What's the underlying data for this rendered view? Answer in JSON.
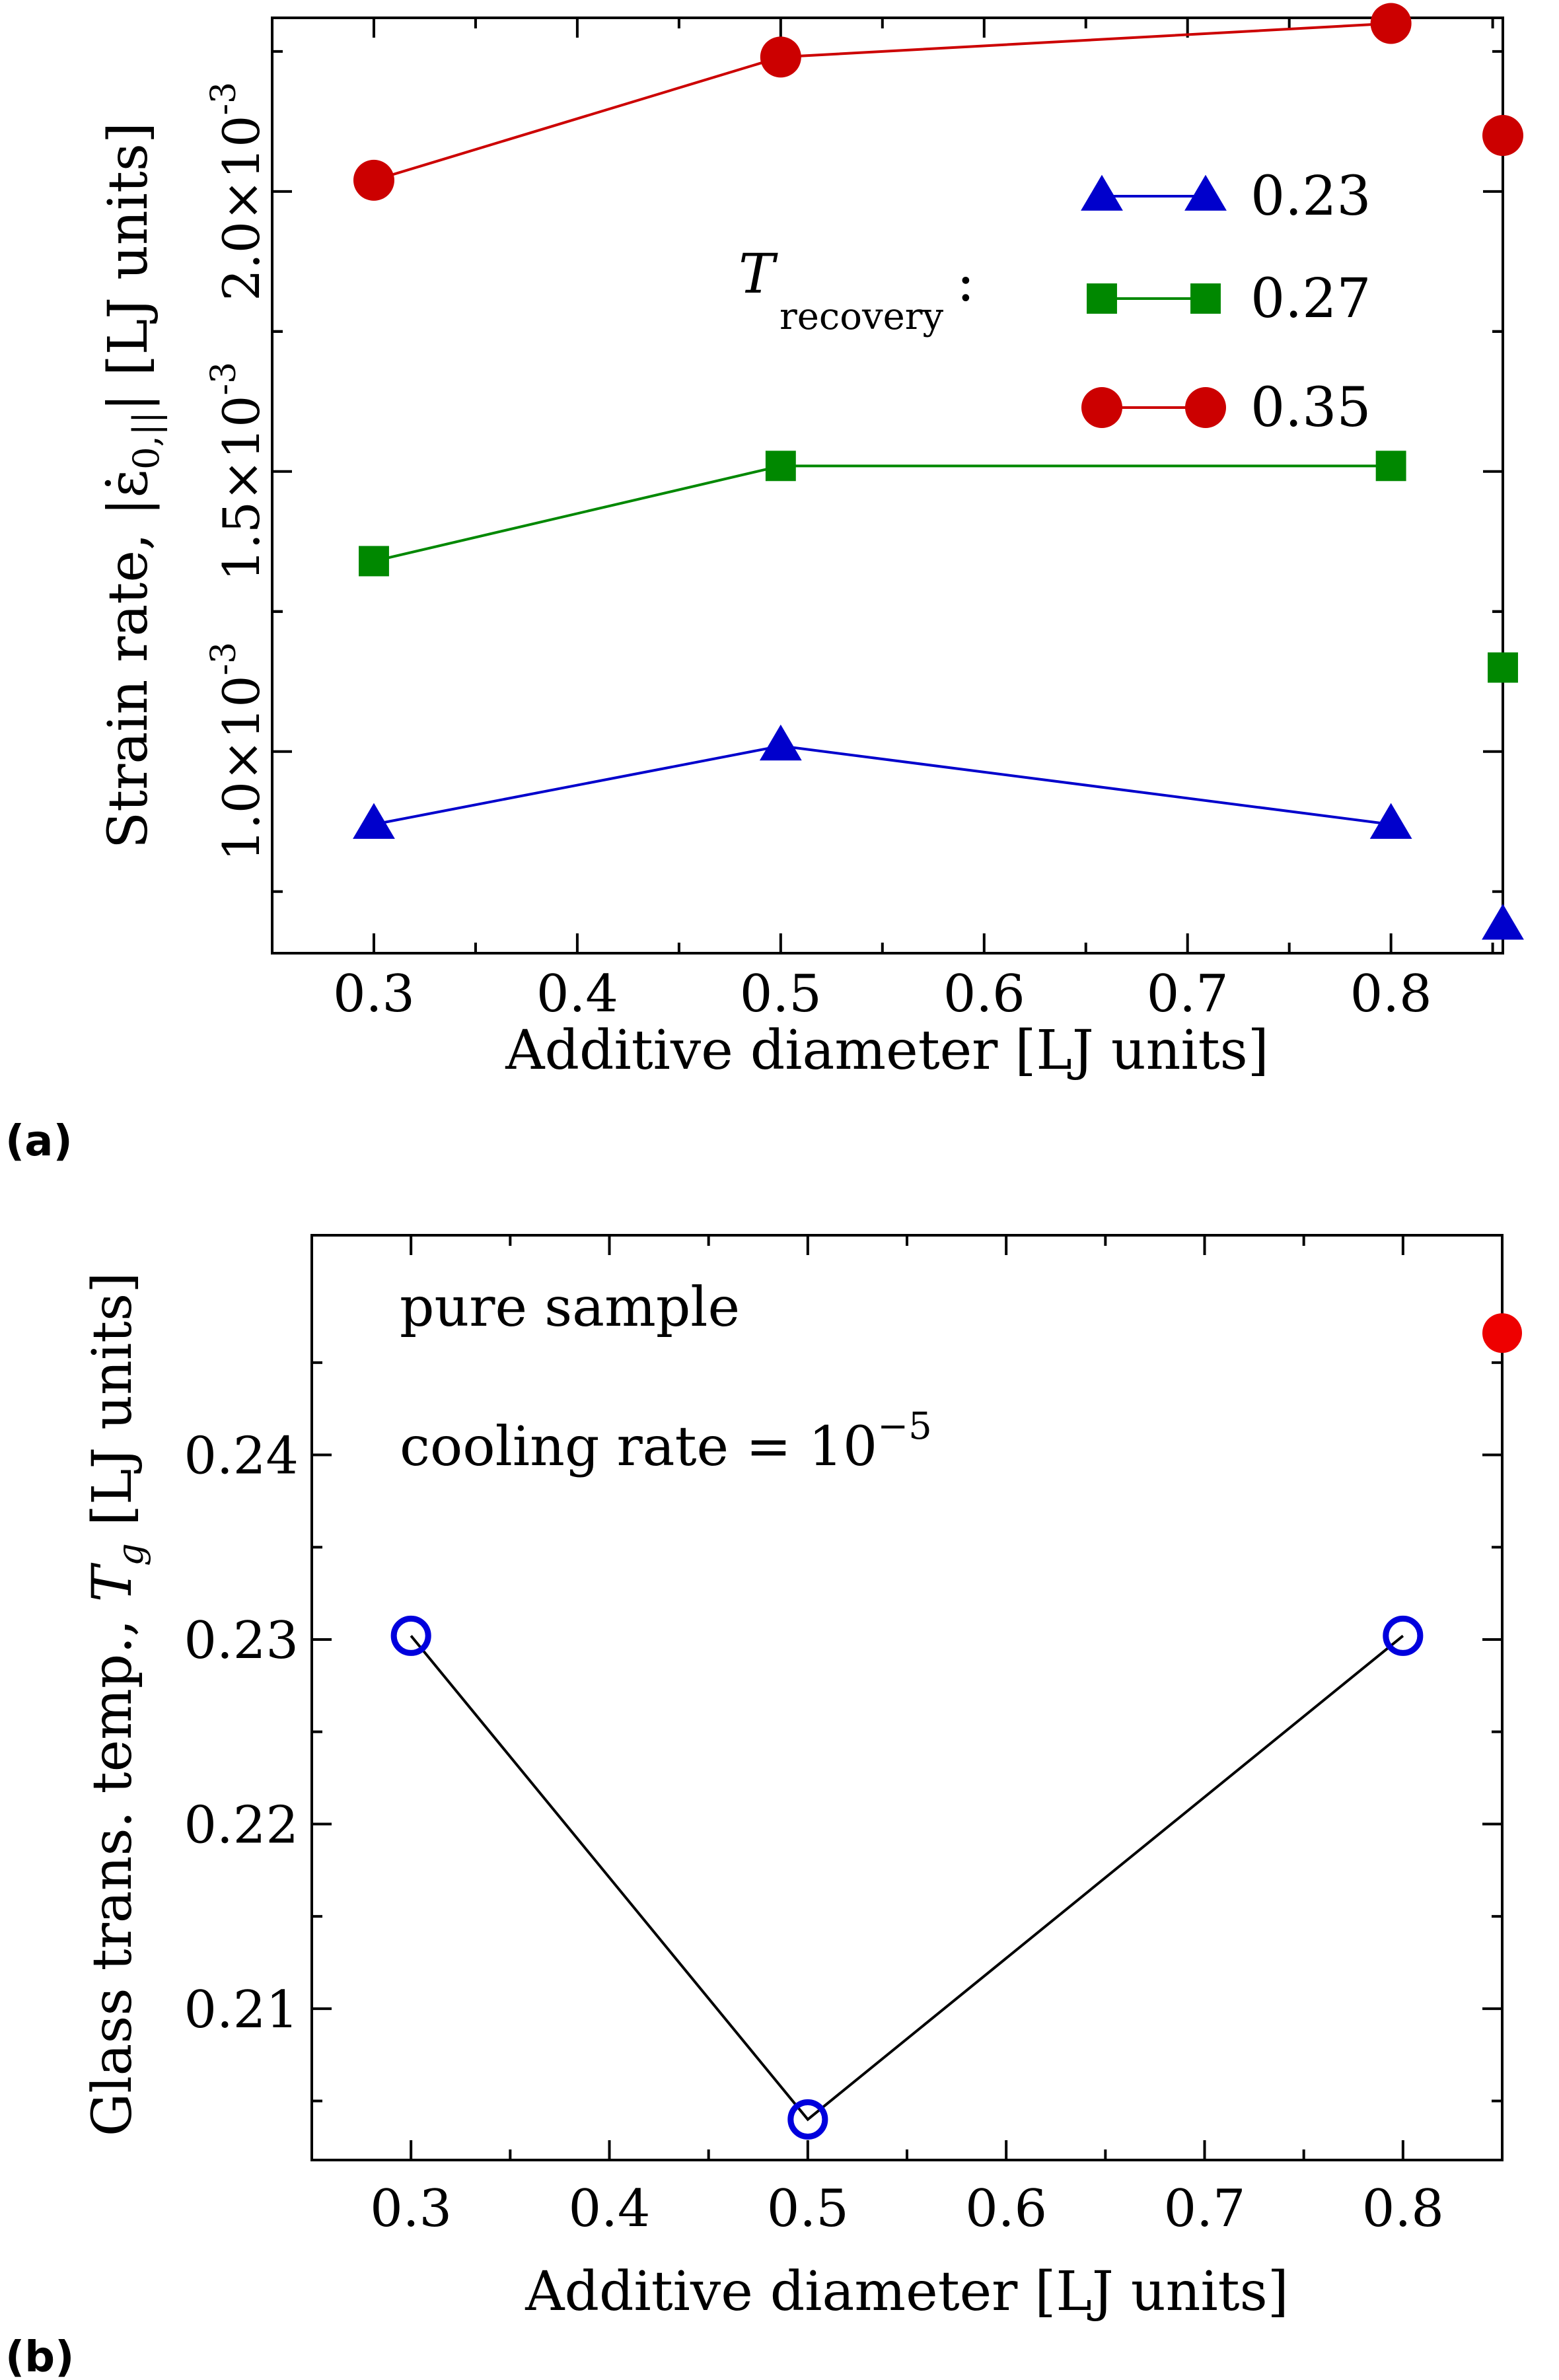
{
  "chart_data": [
    {
      "type": "line",
      "panel_label": "(a)",
      "xlabel": "Additive diameter [LJ units]",
      "ylabel_prefix": "Strain rate, |",
      "ylabel_symbol": "ε̇",
      "ylabel_sub": "0,||",
      "ylabel_suffix": "| [LJ units]",
      "xlim": [
        0.25,
        0.855
      ],
      "ylim": [
        0.00064,
        0.00231
      ],
      "xticks": [
        0.3,
        0.4,
        0.5,
        0.6,
        0.7,
        0.8
      ],
      "xtick_labels": [
        "0.3",
        "0.4",
        "0.5",
        "0.6",
        "0.7",
        "0.8"
      ],
      "yticks": [
        0.001,
        0.0015,
        0.002
      ],
      "ytick_mantissa": [
        "1.0×10",
        "1.5×10",
        "2.0×10"
      ],
      "ytick_exponent": "-3",
      "legend_title": "T",
      "legend_title_sub": "recovery",
      "legend_colon": ":",
      "series": [
        {
          "name": "0.23",
          "color": "#0000cc",
          "marker": "triangle",
          "x": [
            0.3,
            0.5,
            0.8
          ],
          "y": [
            0.00087,
            0.00101,
            0.00087
          ],
          "pure_sample_y": 0.00069
        },
        {
          "name": "0.27",
          "color": "#008800",
          "marker": "square",
          "x": [
            0.3,
            0.5,
            0.8
          ],
          "y": [
            0.00134,
            0.00151,
            0.00151
          ],
          "pure_sample_y": 0.00115
        },
        {
          "name": "0.35",
          "color": "#cc0000",
          "marker": "circle",
          "x": [
            0.3,
            0.5,
            0.8
          ],
          "y": [
            0.00202,
            0.00224,
            0.0023
          ],
          "pure_sample_y": 0.0021
        }
      ]
    },
    {
      "type": "line",
      "panel_label": "(b)",
      "xlabel": "Additive diameter [LJ units]",
      "ylabel_prefix": "Glass trans. temp., ",
      "ylabel_symbol": "T",
      "ylabel_sub": "g",
      "ylabel_suffix": " [LJ units]",
      "xlim": [
        0.25,
        0.85
      ],
      "ylim": [
        0.2018,
        0.2519
      ],
      "xticks": [
        0.3,
        0.4,
        0.5,
        0.6,
        0.7,
        0.8
      ],
      "xtick_labels": [
        "0.3",
        "0.4",
        "0.5",
        "0.6",
        "0.7",
        "0.8"
      ],
      "yticks": [
        0.21,
        0.22,
        0.23,
        0.24
      ],
      "ytick_labels": [
        "0.21",
        "0.22",
        "0.23",
        "0.24"
      ],
      "annotation_1": "pure sample",
      "annotation_2_text": "cooling rate = 10",
      "annotation_2_exp": "−5",
      "series": [
        {
          "name": "Tg",
          "color": "#0000dd",
          "line_color": "#000000",
          "marker": "open-circle",
          "x": [
            0.3,
            0.5,
            0.8
          ],
          "y": [
            0.2302,
            0.204,
            0.2302
          ]
        }
      ],
      "pure_sample": {
        "color": "#ee0000",
        "y": 0.2466
      }
    }
  ]
}
